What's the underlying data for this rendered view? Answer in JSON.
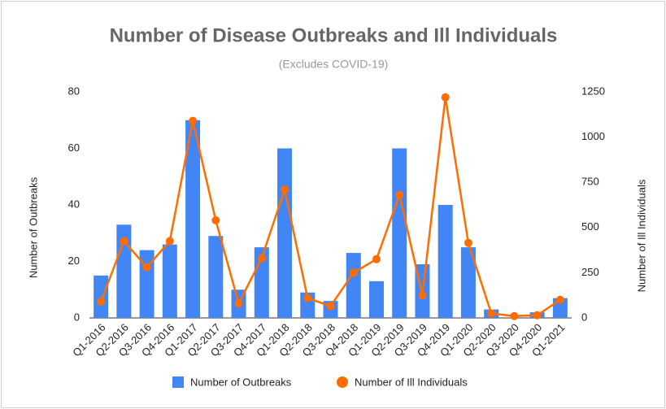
{
  "chart_data": {
    "type": "bar_line",
    "title": "Number of Disease Outbreaks and Ill Individuals",
    "subtitle": "(Excludes COVID-19)",
    "y_label": "Number of Outbreaks",
    "y2_label": "Number of Ill Individuals",
    "categories": [
      "Q1-2016",
      "Q2-2016",
      "Q3-2016",
      "Q4-2016",
      "Q1-2017",
      "Q2-2017",
      "Q3-2017",
      "Q4-2017",
      "Q1-2018",
      "Q2-2018",
      "Q3-2018",
      "Q4-2018",
      "Q1-2019",
      "Q2-2019",
      "Q3-2019",
      "Q4-2019",
      "Q1-2020",
      "Q2-2020",
      "Q3-2020",
      "Q4-2020",
      "Q1-2021"
    ],
    "series": [
      {
        "name": "Number of Outbreaks",
        "color": "#4285f4",
        "kind": "bar",
        "values": [
          15,
          33,
          24,
          26,
          70,
          29,
          10,
          25,
          60,
          9,
          6,
          23,
          13,
          60,
          19,
          40,
          25,
          3,
          0,
          2,
          7
        ]
      },
      {
        "name": "Number of Ill Individuals",
        "color": "#ff6d01",
        "kind": "line",
        "axis": "y2",
        "values": [
          90,
          425,
          280,
          425,
          1090,
          540,
          80,
          330,
          710,
          110,
          65,
          250,
          325,
          680,
          125,
          1220,
          415,
          25,
          10,
          15,
          100
        ]
      }
    ],
    "ylim": [
      0,
      80
    ],
    "yticks": [
      0,
      20,
      40,
      60,
      80
    ],
    "y2lim": [
      0,
      1250
    ],
    "y2ticks": [
      0,
      250,
      500,
      750,
      1000,
      1250
    ],
    "legend": "bottom"
  }
}
